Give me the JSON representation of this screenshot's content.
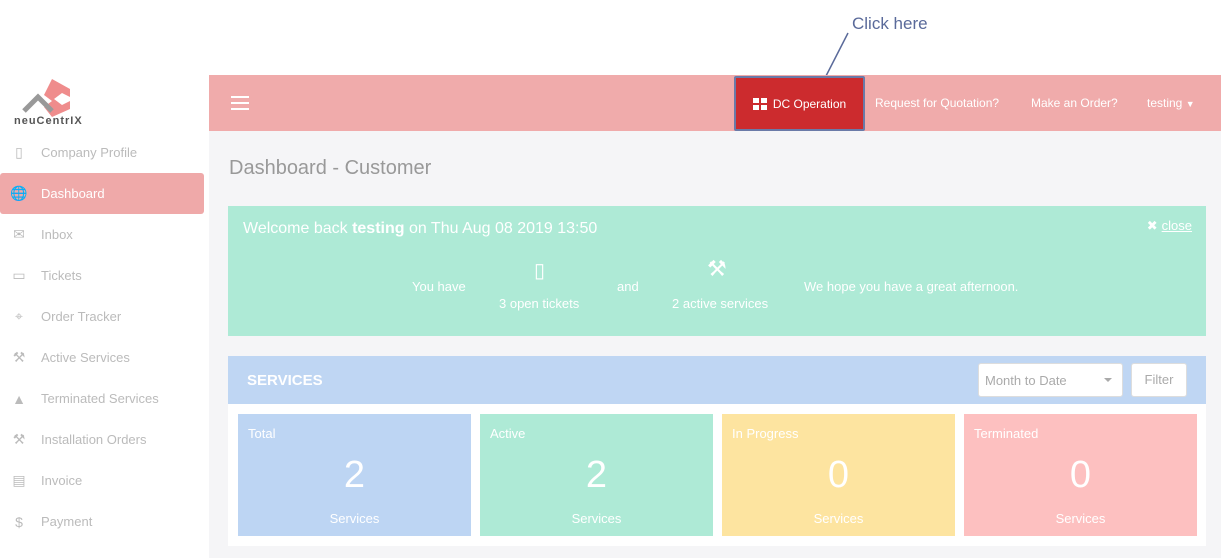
{
  "annotation": {
    "text": "Click here"
  },
  "logo": {
    "text": "neuCentrIX"
  },
  "sidebar": {
    "items": [
      {
        "label": "Company Profile",
        "icon": "building-icon",
        "glyph": "▯"
      },
      {
        "label": "Dashboard",
        "icon": "globe-icon",
        "glyph": "🌐",
        "active": true
      },
      {
        "label": "Inbox",
        "icon": "envelope-icon",
        "glyph": "✉"
      },
      {
        "label": "Tickets",
        "icon": "ticket-icon",
        "glyph": "▭"
      },
      {
        "label": "Order Tracker",
        "icon": "crosshair-icon",
        "glyph": "⌖"
      },
      {
        "label": "Active Services",
        "icon": "gavel-icon",
        "glyph": "⚒"
      },
      {
        "label": "Terminated Services",
        "icon": "warning-icon",
        "glyph": "▲"
      },
      {
        "label": "Installation Orders",
        "icon": "gavel-icon",
        "glyph": "⚒"
      },
      {
        "label": "Invoice",
        "icon": "invoice-icon",
        "glyph": "▤"
      },
      {
        "label": "Payment",
        "icon": "dollar-icon",
        "glyph": "$"
      }
    ]
  },
  "header": {
    "dc_operation": "DC Operation",
    "rfq": "Request for Quotation?",
    "order": "Make an Order?",
    "user": "testing"
  },
  "main": {
    "title": "Dashboard - Customer",
    "welcome": {
      "prefix": "Welcome back ",
      "user": "testing",
      "suffix": " on Thu Aug 08 2019 13:50",
      "close": "close",
      "you_have": "You have",
      "tickets": "3 open tickets",
      "and": "and",
      "services": "2 active services",
      "hope": "We hope you have a great afternoon."
    },
    "services": {
      "title": "SERVICES",
      "period": "Month to Date",
      "filter": "Filter",
      "cards": [
        {
          "label": "Total",
          "value": "2",
          "unit": "Services",
          "color": "#bdd5f3"
        },
        {
          "label": "Active",
          "value": "2",
          "unit": "Services",
          "color": "#aeead6"
        },
        {
          "label": "In Progress",
          "value": "0",
          "unit": "Services",
          "color": "#fde4a0"
        },
        {
          "label": "Terminated",
          "value": "0",
          "unit": "Services",
          "color": "#fdc0c0"
        }
      ]
    }
  }
}
